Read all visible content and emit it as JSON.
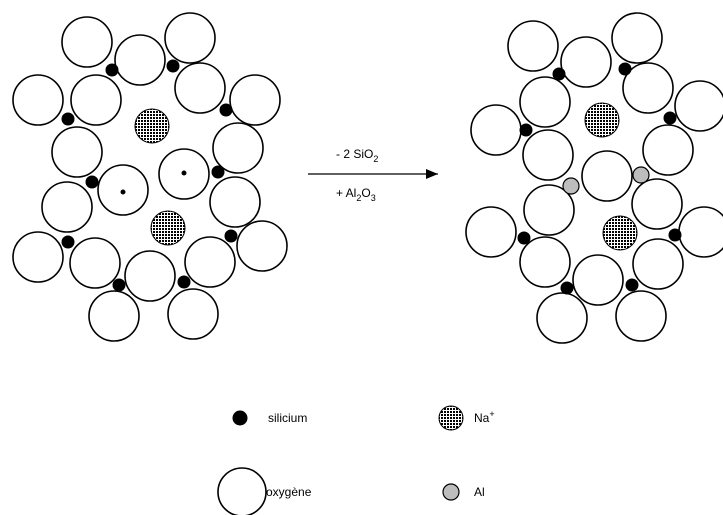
{
  "reaction": {
    "removed": "- 2 SiO",
    "removed_sub": "2",
    "added_prefix": "+ Al",
    "added_sub1": "2",
    "added_mid": "O",
    "added_sub2": "3"
  },
  "legend": {
    "silicium": "silicium",
    "sodium": "Na",
    "sodium_charge": "+",
    "oxygen": "oxygène",
    "aluminium": "Al"
  },
  "colors": {
    "silicium": "#000000",
    "oxygen": "#ffffff",
    "sodium": "#4a4a4a",
    "aluminium": "#bdbdbd"
  }
}
